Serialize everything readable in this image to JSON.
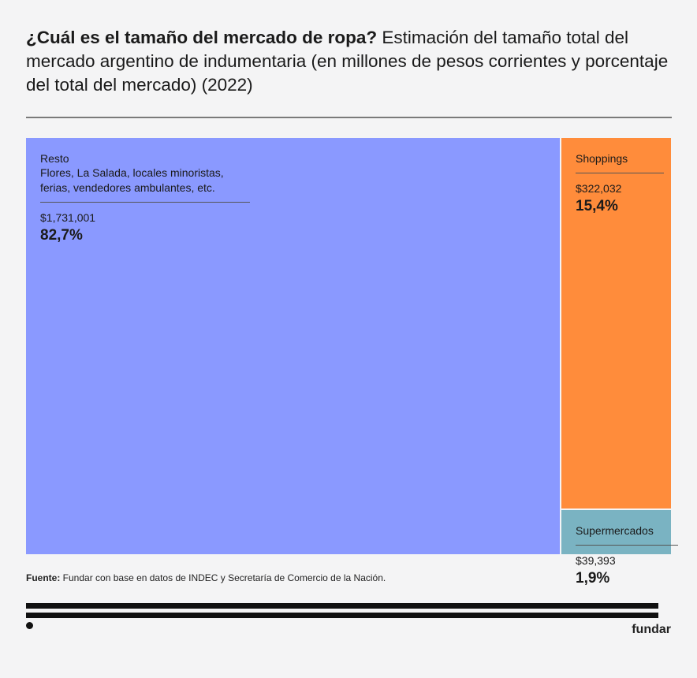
{
  "title": {
    "bold": "¿Cuál es el tamaño del mercado de ropa?",
    "rest": " Estimación del tamaño total del mercado argentino de indumentaria (en millones de pesos corrientes y porcentaje del total del mercado) (2022)"
  },
  "chart_data": {
    "type": "treemap",
    "title": "¿Cuál es el tamaño del mercado de ropa? Estimación del tamaño total del mercado argentino de indumentaria (en millones de pesos corrientes y porcentaje del total del mercado) (2022)",
    "series": [
      {
        "name": "Resto",
        "description": "Flores, La Salada, locales minoristas, ferias, vendedores ambulantes, etc.",
        "value": 1731001,
        "value_label": "$1,731,001",
        "percent": 82.7,
        "percent_label": "82,7%",
        "color": "#8a99ff"
      },
      {
        "name": "Shoppings",
        "description": "",
        "value": 322032,
        "value_label": "$322,032",
        "percent": 15.4,
        "percent_label": "15,4%",
        "color": "#ff8c3b"
      },
      {
        "name": "Supermercados",
        "description": "",
        "value": 39393,
        "value_label": "$39,393",
        "percent": 1.9,
        "percent_label": "1,9%",
        "color": "#7ab3c2"
      }
    ]
  },
  "source": {
    "label": "Fuente:",
    "text": " Fundar con base en datos de INDEC y Secretaría de Comercio de la Nación."
  },
  "brand": "fundar"
}
